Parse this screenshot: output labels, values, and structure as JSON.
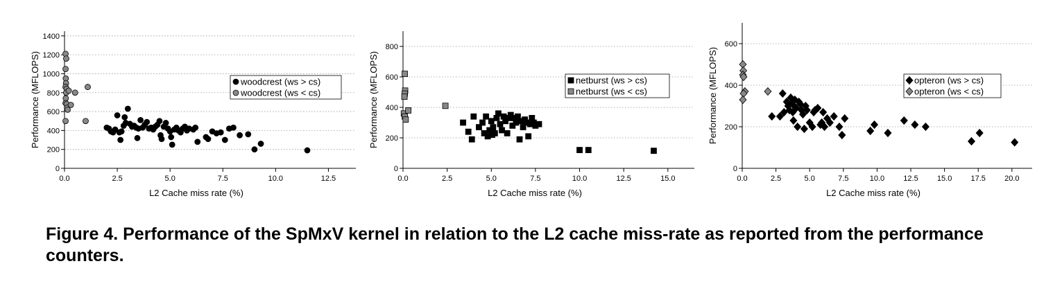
{
  "caption": "Figure 4. Performance of the SpMxV kernel in relation to the L2 cache miss-rate as reported from the performance counters.",
  "chart_data": [
    {
      "type": "scatter",
      "title": "",
      "xlabel": "L2 Cache miss rate (%)",
      "ylabel": "Performance (MFLOPS)",
      "xlim": [
        0,
        13.8
      ],
      "ylim": [
        0,
        1450
      ],
      "xticks": [
        "0.0",
        "2.5",
        "5.0",
        "7.5",
        "10.0",
        "12.5"
      ],
      "xtick_values": [
        0,
        2.5,
        5,
        7.5,
        10,
        12.5
      ],
      "yticks": [
        "0",
        "200",
        "400",
        "600",
        "800",
        "1000",
        "1200",
        "1400"
      ],
      "ytick_values": [
        0,
        200,
        400,
        600,
        800,
        1000,
        1200,
        1400
      ],
      "grid": "horizontal dotted",
      "legend_position": "right",
      "marker": "circle",
      "series": [
        {
          "name": "woodcrest (ws > cs)",
          "color": "#000000",
          "points": [
            [
              2,
              430
            ],
            [
              2.1,
              420
            ],
            [
              2.2,
              390
            ],
            [
              2.3,
              380
            ],
            [
              2.4,
              410
            ],
            [
              2.5,
              560
            ],
            [
              2.6,
              380
            ],
            [
              2.65,
              300
            ],
            [
              2.7,
              390
            ],
            [
              2.8,
              450
            ],
            [
              2.85,
              540
            ],
            [
              2.9,
              480
            ],
            [
              3,
              630
            ],
            [
              3.1,
              470
            ],
            [
              3.2,
              440
            ],
            [
              3.3,
              450
            ],
            [
              3.4,
              430
            ],
            [
              3.45,
              320
            ],
            [
              3.5,
              420
            ],
            [
              3.6,
              510
            ],
            [
              3.7,
              430
            ],
            [
              3.8,
              460
            ],
            [
              3.9,
              490
            ],
            [
              4,
              420
            ],
            [
              4.1,
              430
            ],
            [
              4.2,
              410
            ],
            [
              4.3,
              440
            ],
            [
              4.4,
              460
            ],
            [
              4.5,
              500
            ],
            [
              4.55,
              350
            ],
            [
              4.6,
              310
            ],
            [
              4.7,
              440
            ],
            [
              4.8,
              480
            ],
            [
              4.9,
              420
            ],
            [
              5,
              390
            ],
            [
              5.05,
              330
            ],
            [
              5.1,
              250
            ],
            [
              5.2,
              410
            ],
            [
              5.3,
              430
            ],
            [
              5.4,
              400
            ],
            [
              5.5,
              380
            ],
            [
              5.6,
              420
            ],
            [
              5.7,
              440
            ],
            [
              5.8,
              400
            ],
            [
              5.9,
              420
            ],
            [
              6.1,
              410
            ],
            [
              6.2,
              430
            ],
            [
              6.3,
              280
            ],
            [
              6.7,
              330
            ],
            [
              6.8,
              310
            ],
            [
              7,
              390
            ],
            [
              7.2,
              370
            ],
            [
              7.4,
              380
            ],
            [
              7.6,
              300
            ],
            [
              7.8,
              420
            ],
            [
              8,
              430
            ],
            [
              8.3,
              350
            ],
            [
              8.7,
              360
            ],
            [
              9,
              200
            ],
            [
              9.3,
              260
            ],
            [
              11.5,
              190
            ]
          ]
        },
        {
          "name": "woodcrest (ws < cs)",
          "color": "#888888",
          "points": [
            [
              0.05,
              1210
            ],
            [
              0.08,
              1160
            ],
            [
              0.05,
              1050
            ],
            [
              0.06,
              950
            ],
            [
              0.07,
              900
            ],
            [
              0.05,
              860
            ],
            [
              0.1,
              840
            ],
            [
              0.08,
              800
            ],
            [
              0.06,
              740
            ],
            [
              0.05,
              690
            ],
            [
              0.1,
              680
            ],
            [
              0.12,
              640
            ],
            [
              0.15,
              620
            ],
            [
              0.2,
              820
            ],
            [
              0.3,
              670
            ],
            [
              0.5,
              800
            ],
            [
              0.05,
              500
            ],
            [
              1,
              500
            ],
            [
              1.1,
              860
            ]
          ]
        }
      ]
    },
    {
      "type": "scatter",
      "title": "",
      "xlabel": "L2 Cache miss rate (%)",
      "ylabel": "Performance (MFLOPS)",
      "xlim": [
        0,
        16.5
      ],
      "ylim": [
        0,
        900
      ],
      "xticks": [
        "0.0",
        "2.5",
        "5.0",
        "7.5",
        "10.0",
        "12.5",
        "15.0"
      ],
      "xtick_values": [
        0,
        2.5,
        5,
        7.5,
        10,
        12.5,
        15
      ],
      "yticks": [
        "0",
        "200",
        "400",
        "600",
        "800"
      ],
      "ytick_values": [
        0,
        200,
        400,
        600,
        800
      ],
      "grid": "horizontal dotted",
      "legend_position": "right",
      "marker": "square",
      "series": [
        {
          "name": "netburst (ws > cs)",
          "color": "#000000",
          "points": [
            [
              3.4,
              300
            ],
            [
              3.7,
              240
            ],
            [
              3.9,
              190
            ],
            [
              4,
              340
            ],
            [
              4.3,
              270
            ],
            [
              4.5,
              300
            ],
            [
              4.6,
              230
            ],
            [
              4.7,
              340
            ],
            [
              4.8,
              210
            ],
            [
              4.9,
              250
            ],
            [
              5,
              310
            ],
            [
              5.05,
              220
            ],
            [
              5.1,
              270
            ],
            [
              5.2,
              230
            ],
            [
              5.3,
              330
            ],
            [
              5.4,
              360
            ],
            [
              5.5,
              290
            ],
            [
              5.6,
              250
            ],
            [
              5.7,
              340
            ],
            [
              5.8,
              310
            ],
            [
              5.9,
              230
            ],
            [
              6,
              330
            ],
            [
              6.1,
              350
            ],
            [
              6.2,
              280
            ],
            [
              6.3,
              330
            ],
            [
              6.4,
              300
            ],
            [
              6.5,
              340
            ],
            [
              6.6,
              190
            ],
            [
              6.7,
              310
            ],
            [
              6.8,
              270
            ],
            [
              6.9,
              320
            ],
            [
              7,
              300
            ],
            [
              7.1,
              210
            ],
            [
              7.2,
              290
            ],
            [
              7.3,
              330
            ],
            [
              7.4,
              300
            ],
            [
              7.5,
              280
            ],
            [
              7.7,
              290
            ],
            [
              10,
              120
            ],
            [
              10.5,
              120
            ],
            [
              14.2,
              115
            ]
          ]
        },
        {
          "name": "netburst (ws < cs)",
          "color": "#888888",
          "points": [
            [
              0.1,
              620
            ],
            [
              0.12,
              510
            ],
            [
              0.1,
              490
            ],
            [
              0.08,
              470
            ],
            [
              0.05,
              360
            ],
            [
              0.1,
              340
            ],
            [
              0.15,
              320
            ],
            [
              0.3,
              380
            ],
            [
              2.4,
              410
            ]
          ]
        }
      ]
    },
    {
      "type": "scatter",
      "title": "",
      "xlabel": "L2 Cache miss rate (%)",
      "ylabel": "Performance (MFLOPS)",
      "xlim": [
        0,
        21.5
      ],
      "ylim": [
        0,
        700
      ],
      "xticks": [
        "0.0",
        "2.5",
        "5.0",
        "7.5",
        "10.0",
        "12.5",
        "15.0",
        "17.5",
        "20.0"
      ],
      "xtick_values": [
        0,
        2.5,
        5,
        7.5,
        10,
        12.5,
        15,
        17.5,
        20
      ],
      "yticks": [
        "0",
        "200",
        "400",
        "600"
      ],
      "ytick_values": [
        0,
        200,
        400,
        600
      ],
      "grid": "horizontal dotted",
      "legend_position": "right",
      "marker": "diamond",
      "series": [
        {
          "name": "opteron (ws > cs)",
          "color": "#000000",
          "points": [
            [
              2.2,
              250
            ],
            [
              2.8,
              250
            ],
            [
              3,
              360
            ],
            [
              3.1,
              270
            ],
            [
              3.3,
              320
            ],
            [
              3.4,
              300
            ],
            [
              3.5,
              280
            ],
            [
              3.6,
              340
            ],
            [
              3.7,
              310
            ],
            [
              3.75,
              270
            ],
            [
              3.8,
              230
            ],
            [
              3.85,
              300
            ],
            [
              3.9,
              330
            ],
            [
              4,
              290
            ],
            [
              4.1,
              200
            ],
            [
              4.2,
              320
            ],
            [
              4.3,
              310
            ],
            [
              4.4,
              280
            ],
            [
              4.5,
              260
            ],
            [
              4.6,
              190
            ],
            [
              4.7,
              300
            ],
            [
              4.8,
              280
            ],
            [
              5,
              220
            ],
            [
              5.2,
              200
            ],
            [
              5.3,
              270
            ],
            [
              5.4,
              280
            ],
            [
              5.6,
              290
            ],
            [
              5.8,
              210
            ],
            [
              5.9,
              220
            ],
            [
              6,
              270
            ],
            [
              6.1,
              200
            ],
            [
              6.3,
              240
            ],
            [
              6.5,
              220
            ],
            [
              6.8,
              250
            ],
            [
              7.2,
              200
            ],
            [
              7.4,
              160
            ],
            [
              7.6,
              240
            ],
            [
              9.5,
              180
            ],
            [
              9.8,
              210
            ],
            [
              10.8,
              170
            ],
            [
              12,
              230
            ],
            [
              12.8,
              210
            ],
            [
              13.6,
              200
            ],
            [
              17,
              130
            ],
            [
              17.6,
              170
            ],
            [
              20.2,
              125
            ]
          ]
        },
        {
          "name": "opteron (ws < cs)",
          "color": "#888888",
          "points": [
            [
              0.05,
              500
            ],
            [
              0.08,
              470
            ],
            [
              0.05,
              450
            ],
            [
              0.1,
              440
            ],
            [
              0.2,
              370
            ],
            [
              0.1,
              360
            ],
            [
              0.05,
              330
            ],
            [
              1.9,
              370
            ]
          ]
        }
      ]
    }
  ]
}
